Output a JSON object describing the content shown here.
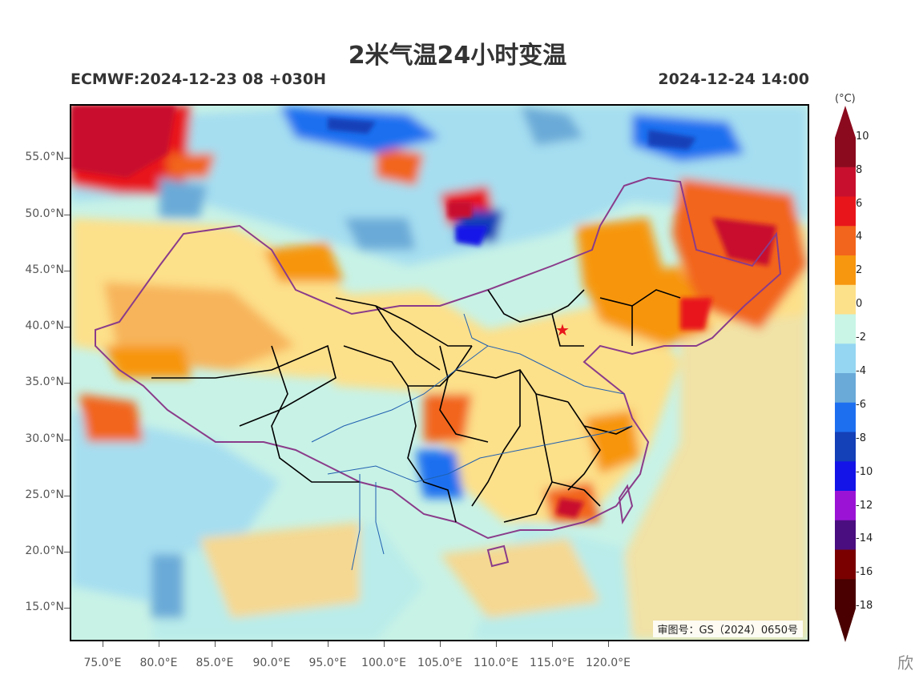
{
  "title": "2米气温24小时变温",
  "subtitle_left": "ECMWF:2024-12-23 08 +030H",
  "subtitle_right": "2024-12-24 14:00",
  "approval_number": "审图号：GS（2024）0650号",
  "watermark_text": "欣",
  "latitude_labels": [
    "55.0°N",
    "50.0°N",
    "45.0°N",
    "40.0°N",
    "35.0°N",
    "30.0°N",
    "25.0°N",
    "20.0°N",
    "15.0°N"
  ],
  "longitude_labels": [
    "75.0°E",
    "80.0°E",
    "85.0°E",
    "90.0°E",
    "95.0°E",
    "100.0°E",
    "105.0°E",
    "110.0°E",
    "115.0°E",
    "120.0°E"
  ],
  "colorbar": {
    "unit": "(°C)",
    "labels": [
      "10",
      "8",
      "6",
      "4",
      "2",
      "0",
      "-2",
      "-4",
      "-6",
      "-8",
      "-10",
      "-12",
      "-14",
      "-16",
      "-18"
    ],
    "colors": [
      "#8b0a1e",
      "#c8102e",
      "#e8161b",
      "#f2651c",
      "#f7960f",
      "#fde08a",
      "#c8f5e6",
      "#95d6f2",
      "#6aaad8",
      "#1e6ff0",
      "#1440b8",
      "#1414e8",
      "#9b14d6",
      "#4a0e80",
      "#7a0000",
      "#4a0000"
    ],
    "max_arrow_color": "#8b0a1e",
    "min_arrow_color": "#4a0000"
  },
  "map": {
    "extent": {
      "lon_min": 72,
      "lon_max": 137,
      "lat_min": 12,
      "lat_max": 60
    },
    "marker": "red star near Beijing"
  }
}
